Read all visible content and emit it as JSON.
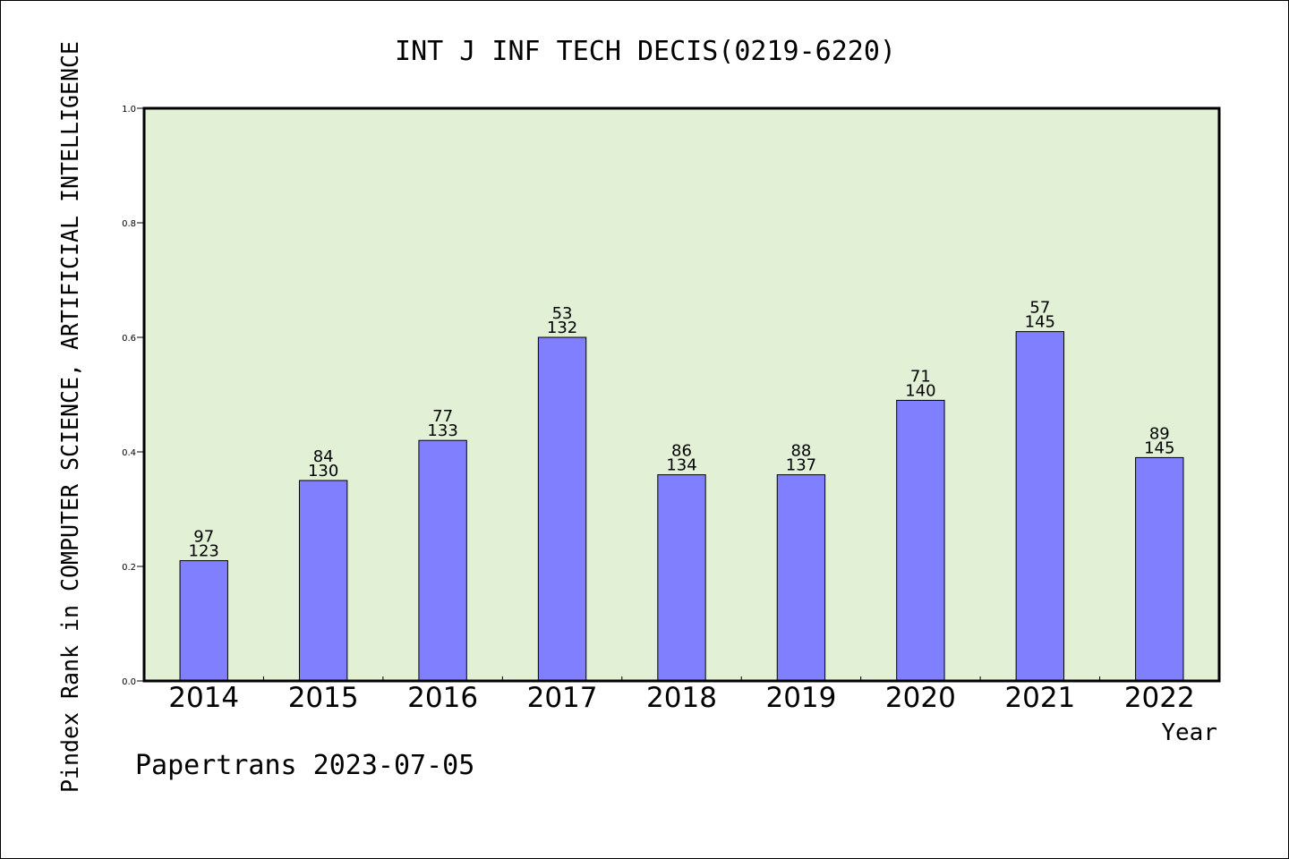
{
  "chart_data": {
    "type": "bar",
    "title": "INT J INF TECH DECIS(0219-6220)",
    "xlabel": "Year",
    "ylabel": "Pindex Rank in COMPUTER SCIENCE, ARTIFICIAL INTELLIGENCE",
    "ylim": [
      0,
      1.0
    ],
    "yticks": [
      "0.0",
      "0.2",
      "0.4",
      "0.6",
      "0.8",
      "1.0"
    ],
    "grid": false,
    "categories": [
      "2014",
      "2015",
      "2016",
      "2017",
      "2018",
      "2019",
      "2020",
      "2021",
      "2022"
    ],
    "values": [
      0.21,
      0.35,
      0.42,
      0.6,
      0.36,
      0.36,
      0.49,
      0.61,
      0.39
    ],
    "rank_labels": [
      "97",
      "84",
      "77",
      "53",
      "86",
      "88",
      "71",
      "57",
      "89"
    ],
    "total_labels": [
      "123",
      "130",
      "133",
      "132",
      "134",
      "137",
      "140",
      "145",
      "145"
    ],
    "colors": {
      "bar": "#8080ff",
      "plot_background": "#e2f0d5",
      "axis": "#000000"
    }
  },
  "footer": {
    "text": "Papertrans 2023-07-05"
  }
}
